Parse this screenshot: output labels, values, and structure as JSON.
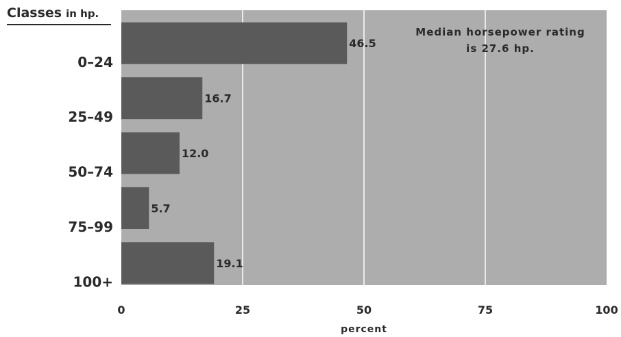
{
  "chart_data": {
    "type": "bar",
    "orientation": "horizontal",
    "categories": [
      "0–24",
      "25–49",
      "50–74",
      "75–99",
      "100+"
    ],
    "values": [
      46.5,
      16.7,
      12.0,
      5.7,
      19.1
    ],
    "value_labels": [
      "46.5",
      "16.7",
      "12.0",
      "5.7",
      "19.1"
    ],
    "category_axis_title": "Classes",
    "category_axis_unit": "in hp.",
    "xlabel": "percent",
    "xlim": [
      0,
      100
    ],
    "xticks": [
      0,
      25,
      50,
      75,
      100
    ],
    "grid": true,
    "annotation": [
      "Median horsepower rating",
      "is 27.6 hp."
    ],
    "colors": {
      "plot_bg": "#adadad",
      "bar": "#5a5a5a",
      "gridline": "#ffffff",
      "text": "#2a2a2a"
    }
  }
}
